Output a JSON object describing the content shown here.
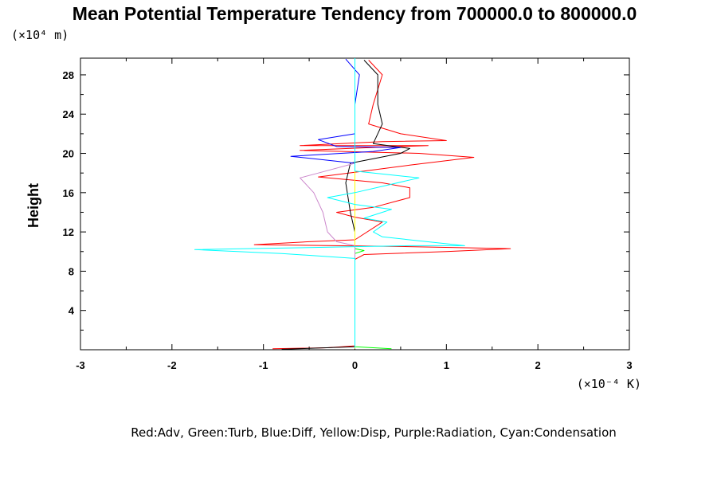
{
  "chart_data": {
    "type": "line",
    "title": "Mean Potential Temperature Tendency from 700000.0 to 800000.0",
    "ylabel": "Height",
    "y_units": "(×10⁴ m)",
    "x_units": "(×10⁻⁴ K)",
    "xlim": [
      -3,
      3
    ],
    "ylim": [
      0,
      29.7
    ],
    "xticks": [
      "-3",
      "-2",
      "-1",
      "0",
      "1",
      "2",
      "3"
    ],
    "yticks": [
      "4",
      "8",
      "12",
      "16",
      "20",
      "24",
      "28"
    ],
    "legend_text": "Red:Adv, Green:Turb, Blue:Diff, Yellow:Disp, Purple:Radiation, Cyan:Condensation",
    "series": [
      {
        "color": "#ff0000",
        "points": [
          [
            -0.9,
            0.1
          ],
          [
            -0.3,
            0.2
          ],
          [
            0.0,
            0.4
          ],
          [
            0.0,
            9.2
          ],
          [
            0.1,
            9.7
          ],
          [
            1.0,
            10.0
          ],
          [
            1.7,
            10.3
          ],
          [
            0.6,
            10.5
          ],
          [
            -1.1,
            10.7
          ],
          [
            -0.5,
            11.0
          ],
          [
            0.0,
            11.2
          ],
          [
            0.3,
            13.0
          ],
          [
            0.0,
            13.5
          ],
          [
            -0.2,
            14.0
          ],
          [
            0.2,
            14.5
          ],
          [
            0.6,
            15.5
          ],
          [
            0.6,
            16.5
          ],
          [
            0.3,
            17.0
          ],
          [
            -0.4,
            17.6
          ],
          [
            0.1,
            18.2
          ],
          [
            0.6,
            18.8
          ],
          [
            1.3,
            19.6
          ],
          [
            0.7,
            20.0
          ],
          [
            -0.6,
            20.3
          ],
          [
            0.2,
            20.6
          ],
          [
            0.8,
            20.8
          ],
          [
            -0.6,
            20.8
          ],
          [
            0.3,
            21.2
          ],
          [
            1.0,
            21.3
          ],
          [
            0.5,
            22.0
          ],
          [
            0.15,
            23.0
          ],
          [
            0.2,
            25.0
          ],
          [
            0.3,
            28.0
          ],
          [
            0.15,
            29.5
          ]
        ]
      },
      {
        "color": "#000000",
        "points": [
          [
            -0.8,
            0.05
          ],
          [
            0.0,
            0.3
          ],
          [
            0.0,
            9.3
          ],
          [
            0.0,
            10.5
          ],
          [
            0.0,
            12.0
          ],
          [
            -0.05,
            14.0
          ],
          [
            -0.1,
            17.0
          ],
          [
            -0.05,
            19.0
          ],
          [
            0.5,
            20.0
          ],
          [
            0.6,
            20.5
          ],
          [
            0.2,
            21.0
          ],
          [
            0.3,
            23.0
          ],
          [
            0.25,
            25.0
          ],
          [
            0.25,
            28.0
          ],
          [
            0.1,
            29.5
          ]
        ]
      },
      {
        "color": "#0000ff",
        "points": [
          [
            0.0,
            0.1
          ],
          [
            0.0,
            10.0
          ],
          [
            0.0,
            19.0
          ],
          [
            -0.7,
            19.7
          ],
          [
            0.2,
            20.2
          ],
          [
            0.5,
            20.6
          ],
          [
            -0.2,
            20.7
          ],
          [
            -0.4,
            21.4
          ],
          [
            0.0,
            22.0
          ],
          [
            0.0,
            25.0
          ],
          [
            0.05,
            28.0
          ],
          [
            -0.1,
            29.6
          ]
        ]
      },
      {
        "color": "#00ff00",
        "points": [
          [
            0.4,
            0.1
          ],
          [
            0.0,
            0.3
          ],
          [
            0.0,
            9.8
          ],
          [
            0.1,
            10.1
          ],
          [
            0.0,
            10.3
          ],
          [
            0.0,
            29.0
          ]
        ]
      },
      {
        "color": "#ffff00",
        "points": [
          [
            0.0,
            0.1
          ],
          [
            0.0,
            29.5
          ]
        ]
      },
      {
        "color": "#cc88cc",
        "points": [
          [
            0.0,
            0.2
          ],
          [
            0.0,
            10.6
          ],
          [
            -0.2,
            11.0
          ],
          [
            -0.3,
            12.0
          ],
          [
            -0.35,
            14.0
          ],
          [
            -0.45,
            16.0
          ],
          [
            -0.6,
            17.5
          ],
          [
            -0.4,
            18.0
          ],
          [
            0.0,
            19.0
          ]
        ]
      },
      {
        "color": "#00ffff",
        "points": [
          [
            0.0,
            0.2
          ],
          [
            0.0,
            9.3
          ],
          [
            -0.8,
            9.8
          ],
          [
            -1.75,
            10.2
          ],
          [
            -0.5,
            10.4
          ],
          [
            0.0,
            10.5
          ],
          [
            0.6,
            10.6
          ],
          [
            1.2,
            10.6
          ],
          [
            0.3,
            11.5
          ],
          [
            0.2,
            12.0
          ],
          [
            0.35,
            13.0
          ],
          [
            0.1,
            13.4
          ],
          [
            0.3,
            14.0
          ],
          [
            0.4,
            14.3
          ],
          [
            0.0,
            14.8
          ],
          [
            -0.3,
            15.5
          ],
          [
            0.0,
            16.0
          ],
          [
            0.7,
            17.5
          ],
          [
            0.3,
            17.9
          ],
          [
            0.0,
            18.2
          ],
          [
            0.0,
            29.7
          ]
        ]
      }
    ]
  }
}
